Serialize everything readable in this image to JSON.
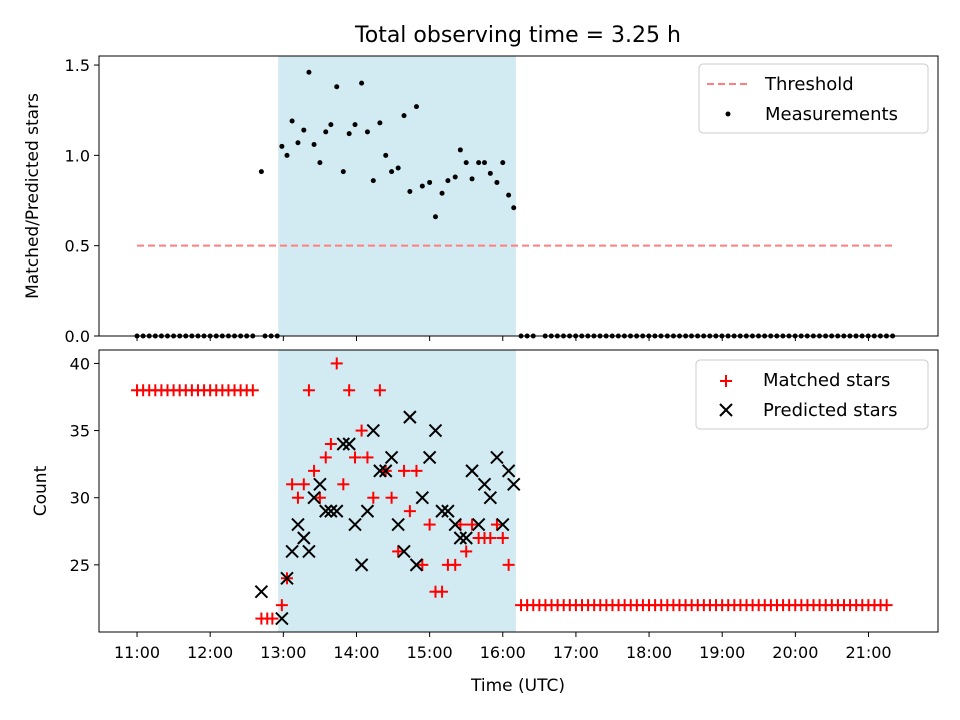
{
  "title": "Total observing time = 3.25 h",
  "colors": {
    "threshold": "#ff7f7f",
    "measurement": "#000000",
    "matched": "#ff0000",
    "predicted": "#000000",
    "observing_span": "#add8e6"
  },
  "chart_data": [
    {
      "type": "scatter",
      "panel": "top",
      "ylabel": "Matched/Predicted stars",
      "ylim": [
        0,
        1.55
      ],
      "yticks": [
        "0.0",
        "0.5",
        "1.0",
        "1.5"
      ],
      "xlim": [
        10.48,
        21.95
      ],
      "observing_span": [
        12.93,
        16.18
      ],
      "legend": {
        "position": "top-right",
        "threshold": "Threshold",
        "measurements": "Measurements"
      },
      "threshold": {
        "name": "Threshold",
        "y": 0.5,
        "x": [
          11.0,
          21.33
        ]
      },
      "series": [
        {
          "name": "Measurements",
          "points": [
            [
              12.7,
              0.91
            ],
            [
              12.98,
              1.05
            ],
            [
              13.05,
              1.0
            ],
            [
              13.12,
              1.19
            ],
            [
              13.2,
              1.07
            ],
            [
              13.28,
              1.14
            ],
            [
              13.35,
              1.46
            ],
            [
              13.42,
              1.06
            ],
            [
              13.5,
              0.96
            ],
            [
              13.58,
              1.13
            ],
            [
              13.65,
              1.17
            ],
            [
              13.73,
              1.38
            ],
            [
              13.82,
              0.91
            ],
            [
              13.9,
              1.12
            ],
            [
              13.98,
              1.17
            ],
            [
              14.07,
              1.4
            ],
            [
              14.15,
              1.13
            ],
            [
              14.23,
              0.86
            ],
            [
              14.32,
              1.18
            ],
            [
              14.4,
              1.0
            ],
            [
              14.48,
              0.91
            ],
            [
              14.57,
              0.93
            ],
            [
              14.65,
              1.22
            ],
            [
              14.73,
              0.8
            ],
            [
              14.82,
              1.27
            ],
            [
              14.9,
              0.83
            ],
            [
              15.0,
              0.85
            ],
            [
              15.08,
              0.66
            ],
            [
              15.17,
              0.79
            ],
            [
              15.25,
              0.86
            ],
            [
              15.35,
              0.88
            ],
            [
              15.42,
              1.03
            ],
            [
              15.5,
              0.96
            ],
            [
              15.58,
              0.87
            ],
            [
              15.67,
              0.96
            ],
            [
              15.75,
              0.96
            ],
            [
              15.83,
              0.9
            ],
            [
              15.92,
              0.85
            ],
            [
              16.0,
              0.96
            ],
            [
              16.08,
              0.78
            ],
            [
              16.15,
              0.71
            ]
          ],
          "zero_runs": [
            {
              "from": 11.0,
              "to": 12.65,
              "step": 0.0833
            },
            {
              "from": 12.75,
              "to": 12.92,
              "step": 0.0833
            },
            {
              "from": 16.25,
              "to": 16.42,
              "step": 0.0833
            },
            {
              "from": 16.58,
              "to": 17.75,
              "step": 0.0833
            },
            {
              "from": 17.83,
              "to": 18.2,
              "step": 0.0833
            },
            {
              "from": 18.25,
              "to": 18.5,
              "step": 0.0833
            },
            {
              "from": 18.58,
              "to": 19.0,
              "step": 0.0833
            },
            {
              "from": 19.08,
              "to": 21.33,
              "step": 0.0833
            }
          ]
        }
      ]
    },
    {
      "type": "scatter",
      "panel": "bottom",
      "xlabel": "Time (UTC)",
      "ylabel": "Count",
      "ylim": [
        20,
        41
      ],
      "yticks": [
        "25",
        "30",
        "35",
        "40"
      ],
      "xlim": [
        10.48,
        21.95
      ],
      "xticks": [
        "11:00",
        "12:00",
        "13:00",
        "14:00",
        "15:00",
        "16:00",
        "17:00",
        "18:00",
        "19:00",
        "20:00",
        "21:00"
      ],
      "observing_span": [
        12.93,
        16.18
      ],
      "legend": {
        "position": "top-right",
        "matched": "Matched stars",
        "predicted": "Predicted stars"
      },
      "series": [
        {
          "name": "Matched stars",
          "constant_runs": [
            {
              "from": 11.0,
              "to": 12.65,
              "step": 0.0833,
              "y": 38
            },
            {
              "from": 16.25,
              "to": 21.33,
              "step": 0.0833,
              "y": 22
            }
          ],
          "points": [
            [
              12.7,
              21
            ],
            [
              12.78,
              21
            ],
            [
              12.85,
              21
            ],
            [
              12.98,
              22
            ],
            [
              13.05,
              24
            ],
            [
              13.12,
              31
            ],
            [
              13.2,
              30
            ],
            [
              13.28,
              31
            ],
            [
              13.35,
              38
            ],
            [
              13.42,
              32
            ],
            [
              13.5,
              30
            ],
            [
              13.58,
              33
            ],
            [
              13.65,
              34
            ],
            [
              13.73,
              40
            ],
            [
              13.82,
              31
            ],
            [
              13.9,
              38
            ],
            [
              13.98,
              33
            ],
            [
              14.07,
              35
            ],
            [
              14.15,
              33
            ],
            [
              14.23,
              30
            ],
            [
              14.32,
              38
            ],
            [
              14.4,
              32
            ],
            [
              14.48,
              30
            ],
            [
              14.57,
              26
            ],
            [
              14.65,
              32
            ],
            [
              14.73,
              29
            ],
            [
              14.82,
              32
            ],
            [
              14.9,
              25
            ],
            [
              15.0,
              28
            ],
            [
              15.08,
              23
            ],
            [
              15.17,
              23
            ],
            [
              15.25,
              25
            ],
            [
              15.35,
              25
            ],
            [
              15.42,
              28
            ],
            [
              15.5,
              26
            ],
            [
              15.58,
              28
            ],
            [
              15.67,
              27
            ],
            [
              15.75,
              27
            ],
            [
              15.83,
              27
            ],
            [
              15.92,
              28
            ],
            [
              16.0,
              27
            ],
            [
              16.08,
              25
            ]
          ]
        },
        {
          "name": "Predicted stars",
          "points": [
            [
              12.7,
              23
            ],
            [
              12.98,
              21
            ],
            [
              13.05,
              24
            ],
            [
              13.12,
              26
            ],
            [
              13.2,
              28
            ],
            [
              13.28,
              27
            ],
            [
              13.35,
              26
            ],
            [
              13.42,
              30
            ],
            [
              13.5,
              31
            ],
            [
              13.58,
              29
            ],
            [
              13.65,
              29
            ],
            [
              13.73,
              29
            ],
            [
              13.82,
              34
            ],
            [
              13.9,
              34
            ],
            [
              13.98,
              28
            ],
            [
              14.07,
              25
            ],
            [
              14.15,
              29
            ],
            [
              14.23,
              35
            ],
            [
              14.32,
              32
            ],
            [
              14.4,
              32
            ],
            [
              14.48,
              33
            ],
            [
              14.57,
              28
            ],
            [
              14.65,
              26
            ],
            [
              14.73,
              36
            ],
            [
              14.82,
              25
            ],
            [
              14.9,
              30
            ],
            [
              15.0,
              33
            ],
            [
              15.08,
              35
            ],
            [
              15.17,
              29
            ],
            [
              15.25,
              29
            ],
            [
              15.35,
              28
            ],
            [
              15.42,
              27
            ],
            [
              15.5,
              27
            ],
            [
              15.58,
              32
            ],
            [
              15.67,
              28
            ],
            [
              15.75,
              31
            ],
            [
              15.83,
              30
            ],
            [
              15.92,
              33
            ],
            [
              16.0,
              28
            ],
            [
              16.08,
              32
            ],
            [
              16.15,
              31
            ]
          ]
        }
      ]
    }
  ]
}
